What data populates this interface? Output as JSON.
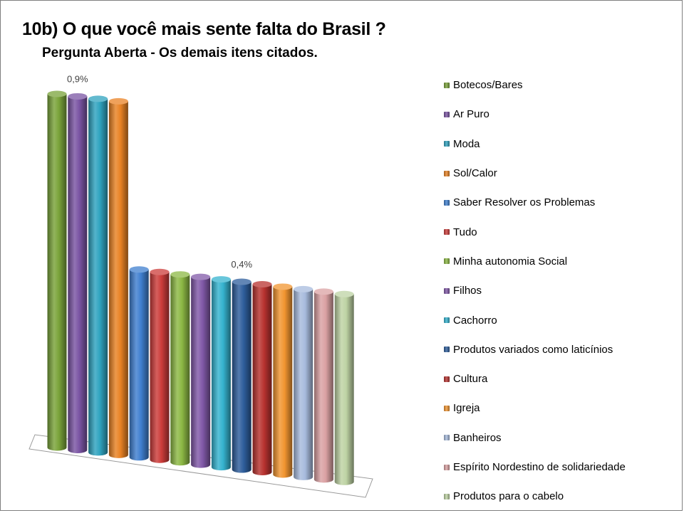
{
  "title": "10b) O que você mais sente falta do Brasil ?",
  "subtitle": "Pergunta Aberta - Os demais itens citados.",
  "chart_data": {
    "type": "bar",
    "style": "3d-cylinder",
    "categories": [
      "Botecos/Bares",
      "Ar Puro",
      "Moda",
      "Sol/Calor",
      "Saber Resolver os Problemas",
      "Tudo",
      "Minha autonomia Social",
      "Filhos",
      "Cachorro",
      "Produtos variados como laticínios",
      "Cultura",
      "Igreja",
      "Banheiros",
      "Espírito Nordestino de solidariedade",
      "Produtos para o cabelo"
    ],
    "values": [
      0.9,
      0.9,
      0.9,
      0.9,
      0.4,
      0.4,
      0.4,
      0.4,
      0.4,
      0.4,
      0.4,
      0.4,
      0.4,
      0.4,
      0.4
    ],
    "unit": "%",
    "data_labels": [
      {
        "index": 1,
        "text": "0,9%"
      },
      {
        "index": 9,
        "text": "0,4%"
      }
    ],
    "colors": [
      "#7aa33a",
      "#7a54a3",
      "#2fa3bf",
      "#e98224",
      "#3f7fcf",
      "#cc3c3a",
      "#8cb844",
      "#8159a8",
      "#35b3cf",
      "#2e5e9c",
      "#b8322f",
      "#f19530",
      "#a7bbdd",
      "#dba1a3",
      "#bed3a4"
    ],
    "legend_position": "right",
    "grid": false
  }
}
